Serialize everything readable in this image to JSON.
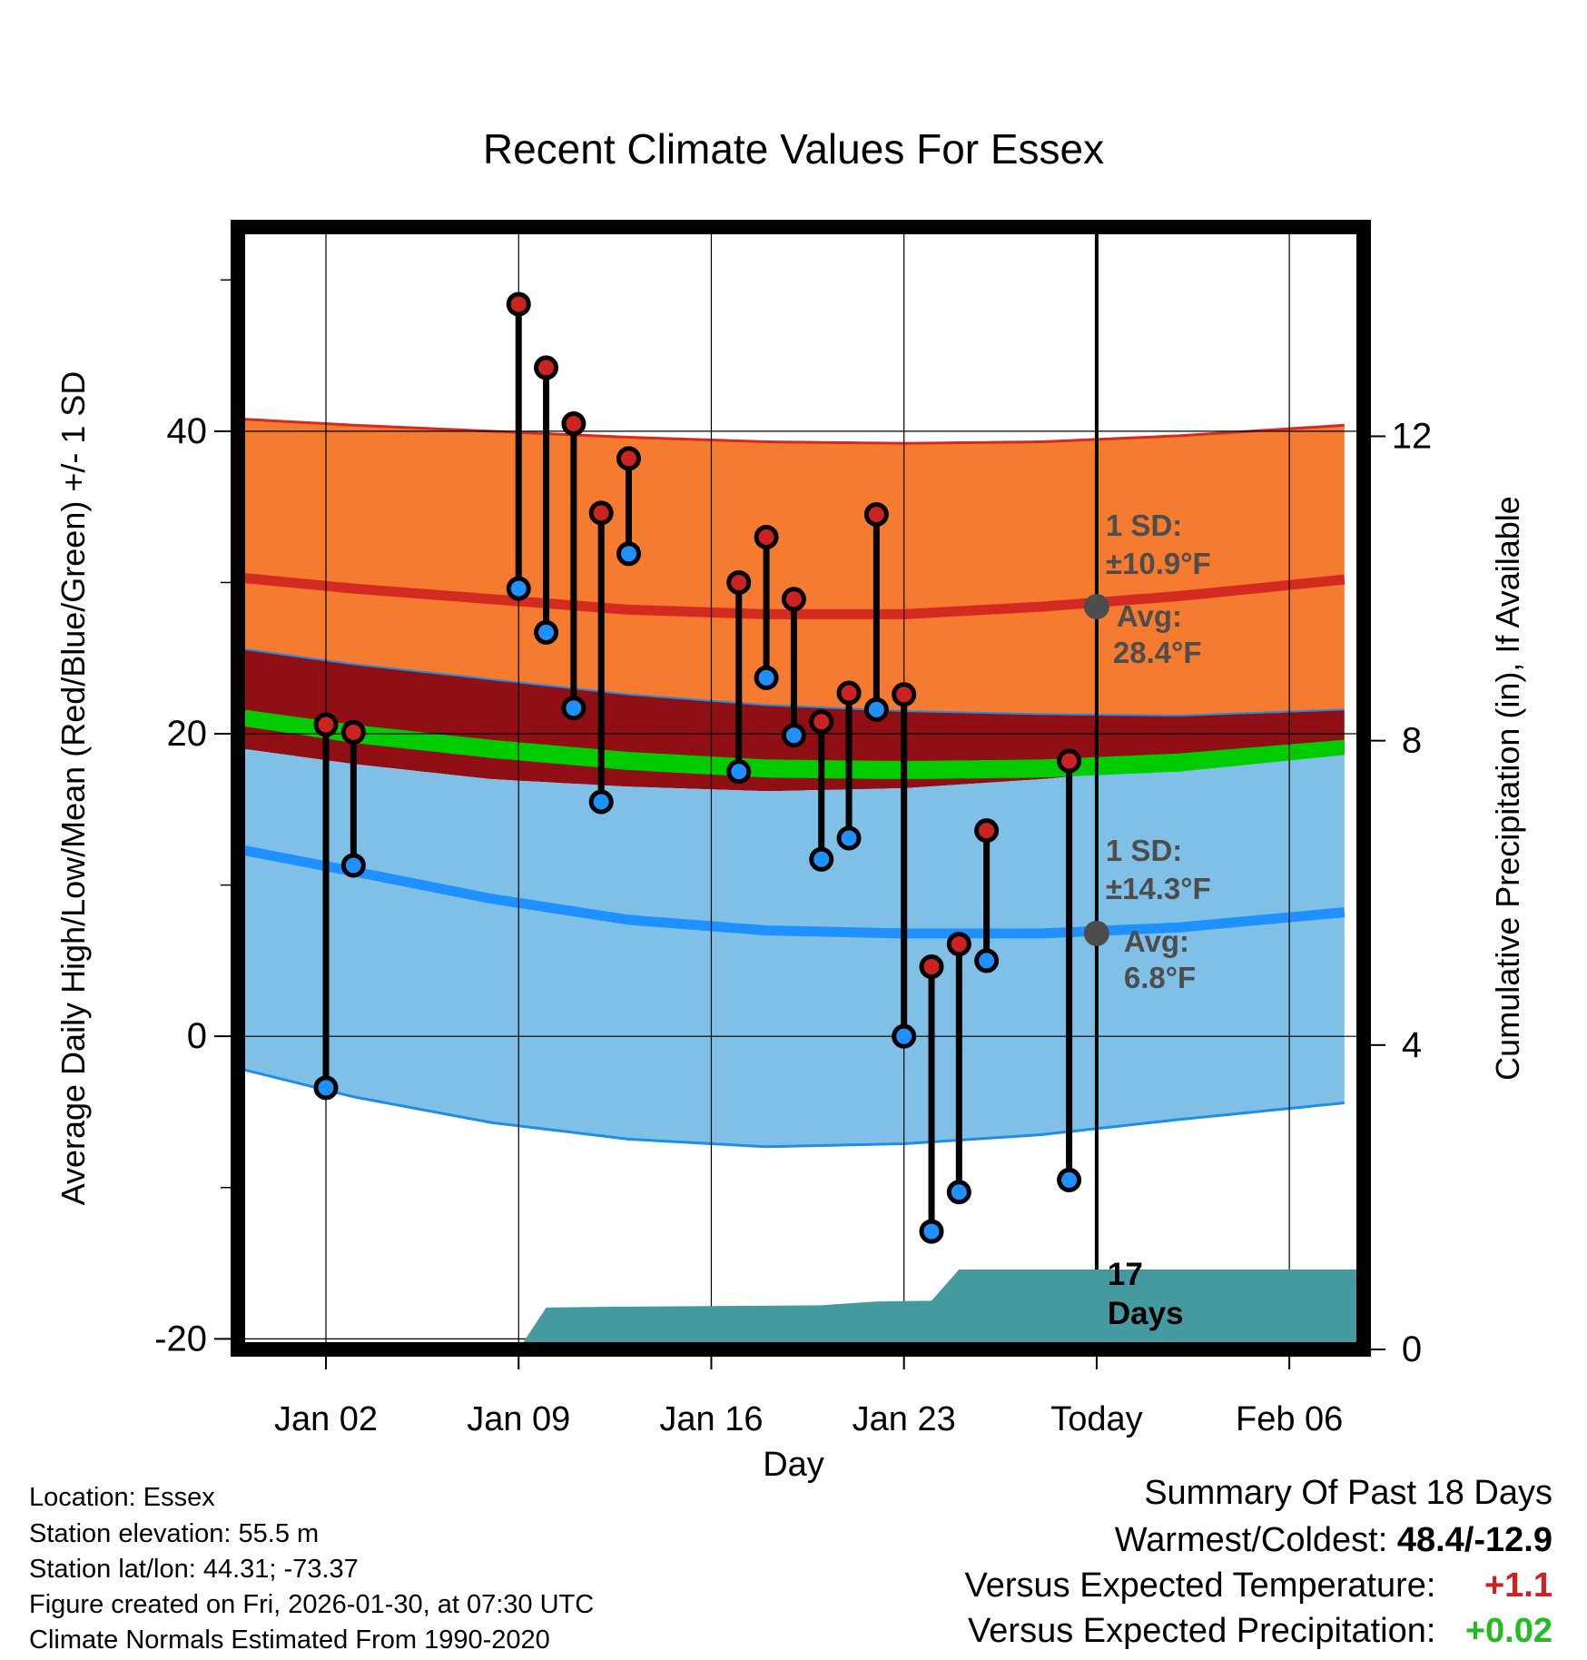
{
  "chart_data": {
    "type": "range-bar",
    "title": "Recent Climate Values For Essex",
    "xlabel": "Day",
    "ylabel": "Average Daily High/Low/Mean (Red/Blue/Green) +/- 1 SD",
    "y2label": "Cumulative Precipitation (in), If Available",
    "xlim": [
      -1.2,
      39.7
    ],
    "ylim": [
      -20.7,
      53.5
    ],
    "y2lim": [
      0,
      14.75
    ],
    "x_ticks": [
      {
        "day": 2,
        "label": "Jan 02"
      },
      {
        "day": 9,
        "label": "Jan 09"
      },
      {
        "day": 16,
        "label": "Jan 16"
      },
      {
        "day": 23,
        "label": "Jan 23"
      },
      {
        "day": 30,
        "label": "Today"
      },
      {
        "day": 37,
        "label": "Feb 06"
      }
    ],
    "y_ticks": [
      -20,
      0,
      20,
      40
    ],
    "y_ticks_minor": [
      -10,
      10,
      30,
      50
    ],
    "y2_ticks": [
      0,
      4,
      8,
      12
    ],
    "today_day": 30,
    "normals": {
      "days": [
        -1,
        3,
        8,
        13,
        18,
        23,
        28,
        33,
        39
      ],
      "high_avg": [
        30.3,
        29.6,
        28.9,
        28.2,
        27.9,
        27.9,
        28.4,
        29.1,
        30.2
      ],
      "high_upper": [
        40.8,
        40.4,
        40.0,
        39.6,
        39.3,
        39.2,
        39.3,
        39.7,
        40.4
      ],
      "high_lower": [
        25.6,
        24.6,
        23.6,
        22.6,
        21.9,
        21.5,
        21.3,
        21.2,
        21.6
      ],
      "mean_avg": [
        21.1,
        19.9,
        18.9,
        18.1,
        17.6,
        17.5,
        17.6,
        18.0,
        19.1
      ],
      "mean_upper": [
        21.6,
        20.6,
        19.6,
        18.8,
        18.3,
        18.2,
        18.3,
        18.7,
        19.6
      ],
      "mean_lower": [
        20.5,
        19.4,
        18.4,
        17.6,
        17.1,
        17.0,
        17.1,
        17.5,
        18.6
      ],
      "low_avg": [
        12.3,
        10.9,
        9.1,
        7.7,
        7.0,
        6.8,
        6.8,
        7.2,
        8.2
      ],
      "low_upper": [
        19.0,
        18.0,
        17.0,
        16.5,
        16.2,
        16.4,
        17.0,
        17.8,
        18.6
      ],
      "low_lower": [
        -2.2,
        -4.0,
        -5.7,
        -6.8,
        -7.3,
        -7.1,
        -6.5,
        -5.5,
        -4.4
      ]
    },
    "series": [
      {
        "name": "High",
        "color": "#cc2222",
        "days": [
          2,
          3,
          9,
          10,
          11,
          12,
          13,
          17,
          18,
          19,
          20,
          21,
          22,
          23,
          24,
          25,
          26,
          29
        ],
        "values": [
          20.6,
          20.1,
          48.4,
          44.2,
          40.5,
          34.6,
          38.2,
          30.0,
          33.0,
          28.9,
          20.8,
          22.7,
          34.5,
          22.6,
          4.6,
          6.1,
          13.6,
          18.2
        ]
      },
      {
        "name": "Low",
        "color": "#1e90ff",
        "days": [
          2,
          3,
          9,
          10,
          11,
          12,
          13,
          17,
          18,
          19,
          20,
          21,
          22,
          23,
          24,
          25,
          26,
          29
        ],
        "values": [
          -3.4,
          11.3,
          29.6,
          26.7,
          21.7,
          15.5,
          31.9,
          17.5,
          23.7,
          19.9,
          11.7,
          13.1,
          21.6,
          0.0,
          -12.9,
          -10.3,
          5.0,
          -9.5
        ]
      }
    ],
    "precipitation": {
      "days": [
        -1,
        7.3,
        8.2,
        9.0,
        10.0,
        12.0,
        16.0,
        20.0,
        22.0,
        24.0,
        25.0,
        39.7
      ],
      "values": [
        0.0,
        0.0,
        0.0,
        0.0,
        0.55,
        0.56,
        0.57,
        0.58,
        0.63,
        0.64,
        1.05,
        1.05
      ],
      "label_days": "17",
      "label_unit": "Days"
    },
    "annotations": {
      "high": {
        "sd_title": "1 SD:",
        "sd_value": "±10.9°F",
        "avg_title": "Avg:",
        "avg_value": "28.4°F",
        "avg": 28.4
      },
      "low": {
        "sd_title": "1 SD:",
        "sd_value": "±14.3°F",
        "avg_title": "Avg:",
        "avg_value": "6.8°F",
        "avg": 6.8
      }
    }
  },
  "footer": {
    "location": "Location: Essex",
    "elevation": "Station elevation: 55.5 m",
    "latlon": "Station lat/lon: 44.31; -73.37",
    "created": "Figure created on Fri, 2026-01-30, at 07:30 UTC",
    "normals": "Climate Normals Estimated From 1990-2020"
  },
  "summary": {
    "title": "Summary Of Past 18 Days",
    "warm_label": "Warmest/Coldest:",
    "warm_value": "48.4/-12.9",
    "temp_label": "Versus Expected Temperature:",
    "temp_value": "+1.1",
    "precip_label": "Versus Expected Precipitation:",
    "precip_value": "+0.02"
  },
  "colors": {
    "high_band": "#f47b30",
    "high_avg_line": "#d42a22",
    "overlap_band": "#900f14",
    "mean_band": "#00cc00",
    "low_band": "#80c0e6",
    "low_avg_line": "#1e90ff",
    "low_edge": "#1f8de6",
    "precip": "#459a9f",
    "high_dot": "#cc2222",
    "low_dot": "#1e90ff",
    "annot": "#4d4d4d",
    "temp_value": "#cc2222",
    "precip_value": "#22bb22"
  }
}
